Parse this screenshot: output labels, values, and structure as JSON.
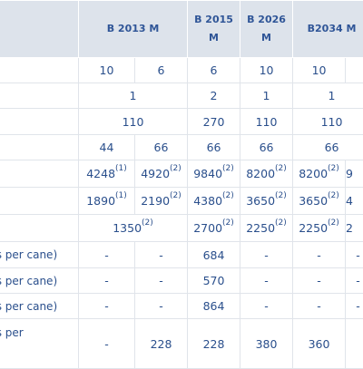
{
  "headers": {
    "h1": "B 2013 M",
    "h2_line1": "B 2015",
    "h2_line2": "M",
    "h3_line1": "B 2026",
    "h3_line2": "M",
    "h4": "B2034 M"
  },
  "rows": {
    "r1": [
      "10",
      "6",
      "6",
      "10",
      "10",
      ""
    ],
    "r2": [
      "1",
      "2",
      "1",
      "1"
    ],
    "r3": [
      "110",
      "270",
      "110",
      "110"
    ],
    "r4": [
      "44",
      "66",
      "66",
      "66",
      "66"
    ],
    "r5": [
      {
        "v": "4248",
        "s": "(1)"
      },
      {
        "v": "4920",
        "s": "(2)"
      },
      {
        "v": "9840",
        "s": "(2)"
      },
      {
        "v": "8200",
        "s": "(2)"
      },
      {
        "v": "8200",
        "s": "(2)"
      },
      {
        "v": "9",
        "s": ""
      }
    ],
    "r6": [
      {
        "v": "1890",
        "s": "(1)"
      },
      {
        "v": "2190",
        "s": "(2)"
      },
      {
        "v": "4380",
        "s": "(2)"
      },
      {
        "v": "3650",
        "s": "(2)"
      },
      {
        "v": "3650",
        "s": "(2)"
      },
      {
        "v": "4",
        "s": ""
      }
    ],
    "r7": [
      {
        "v": "1350",
        "s": "(2)"
      },
      {
        "v": "2700",
        "s": "(2)"
      },
      {
        "v": "2250",
        "s": "(2)"
      },
      {
        "v": "2250",
        "s": "(2)"
      },
      {
        "v": "2",
        "s": ""
      }
    ],
    "r8_label": "als per cane)",
    "r8": [
      "-",
      "-",
      "684",
      "-",
      "-",
      "-"
    ],
    "r9_label": "als per cane)",
    "r9": [
      "-",
      "-",
      "570",
      "-",
      "-",
      "-"
    ],
    "r10_label": "als per cane)",
    "r10": [
      "-",
      "-",
      "864",
      "-",
      "-",
      "-"
    ],
    "r11_label": "als per",
    "r11": [
      "-",
      "228",
      "228",
      "380",
      "360",
      ""
    ]
  }
}
